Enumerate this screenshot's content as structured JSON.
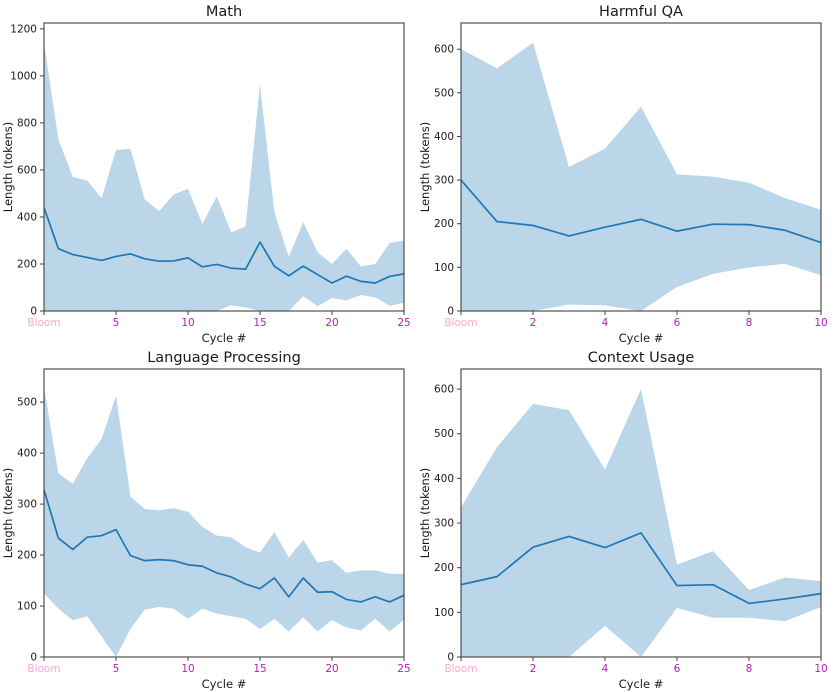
{
  "figure": {
    "background": "#ffffff",
    "x_axis_label": "Cycle #",
    "y_axis_label": "Length (tokens)",
    "bloom_label": "Bloom"
  },
  "colors": {
    "line": "#1f77b4",
    "band": "#1f77b4",
    "band_opacity": 0.3,
    "xtick_label": "#b51eb5",
    "bloom_tick_label": "#ffa6d2",
    "ytick_label": "#1c1c1c",
    "spine": "#414141"
  },
  "chart_data": [
    {
      "type": "line",
      "title": "Math",
      "xlabel": "Cycle #",
      "ylabel": "Length (tokens)",
      "xlim": [
        0,
        25
      ],
      "ylim": [
        0,
        1225
      ],
      "xticks": [
        0,
        5,
        10,
        15,
        20,
        25
      ],
      "xtick_labels": [
        "Bloom",
        "5",
        "10",
        "15",
        "20",
        "25"
      ],
      "yticks": [
        0,
        200,
        400,
        600,
        800,
        1000,
        1200
      ],
      "x": [
        0,
        1,
        2,
        3,
        4,
        5,
        6,
        7,
        8,
        9,
        10,
        11,
        12,
        13,
        14,
        15,
        16,
        17,
        18,
        19,
        20,
        21,
        22,
        23,
        24,
        25
      ],
      "series": {
        "mean": [
          440,
          265,
          240,
          228,
          215,
          232,
          243,
          222,
          212,
          213,
          226,
          188,
          198,
          182,
          178,
          293,
          190,
          150,
          191,
          155,
          119,
          148,
          126,
          119,
          147,
          158
        ],
        "band_upper": [
          1140,
          730,
          570,
          555,
          480,
          685,
          690,
          475,
          425,
          495,
          520,
          370,
          487,
          335,
          360,
          963,
          420,
          230,
          378,
          250,
          200,
          265,
          190,
          200,
          290,
          300
        ],
        "band_lower": [
          0,
          0,
          0,
          0,
          0,
          0,
          0,
          0,
          0,
          0,
          0,
          0,
          0,
          25,
          15,
          0,
          0,
          0,
          63,
          20,
          55,
          45,
          68,
          58,
          22,
          35
        ]
      },
      "legend": "none",
      "grid": false
    },
    {
      "type": "line",
      "title": "Harmful QA",
      "xlabel": "Cycle #",
      "ylabel": "Length (tokens)",
      "xlim": [
        0,
        10
      ],
      "ylim": [
        0,
        660
      ],
      "xticks": [
        0,
        2,
        4,
        6,
        8,
        10
      ],
      "xtick_labels": [
        "Bloom",
        "2",
        "4",
        "6",
        "8",
        "10"
      ],
      "yticks": [
        0,
        100,
        200,
        300,
        400,
        500,
        600
      ],
      "x": [
        0,
        1,
        2,
        3,
        4,
        5,
        6,
        7,
        8,
        9,
        10
      ],
      "series": {
        "mean": [
          300,
          205,
          196,
          172,
          192,
          210,
          183,
          199,
          198,
          185,
          157
        ],
        "band_upper": [
          600,
          556,
          615,
          330,
          372,
          468,
          313,
          308,
          294,
          259,
          232
        ],
        "band_lower": [
          0,
          0,
          0,
          15,
          13,
          0,
          55,
          85,
          100,
          108,
          82
        ]
      },
      "legend": "none",
      "grid": false
    },
    {
      "type": "line",
      "title": "Language Processing",
      "xlabel": "Cycle #",
      "ylabel": "Length (tokens)",
      "xlim": [
        0,
        25
      ],
      "ylim": [
        0,
        565
      ],
      "xticks": [
        0,
        5,
        10,
        15,
        20,
        25
      ],
      "xtick_labels": [
        "Bloom",
        "5",
        "10",
        "15",
        "20",
        "25"
      ],
      "yticks": [
        0,
        100,
        200,
        300,
        400,
        500
      ],
      "x": [
        0,
        1,
        2,
        3,
        4,
        5,
        6,
        7,
        8,
        9,
        10,
        11,
        12,
        13,
        14,
        15,
        16,
        17,
        18,
        19,
        20,
        21,
        22,
        23,
        24,
        25
      ],
      "series": {
        "mean": [
          328,
          233,
          211,
          235,
          238,
          250,
          199,
          189,
          191,
          189,
          181,
          178,
          165,
          157,
          143,
          134,
          155,
          118,
          155,
          127,
          128,
          113,
          108,
          118,
          108,
          121
        ],
        "band_upper": [
          530,
          360,
          340,
          390,
          428,
          512,
          315,
          290,
          288,
          292,
          285,
          255,
          238,
          235,
          215,
          205,
          245,
          195,
          230,
          185,
          190,
          165,
          170,
          170,
          163,
          163
        ],
        "band_lower": [
          125,
          95,
          72,
          80,
          40,
          0,
          55,
          93,
          98,
          95,
          75,
          95,
          85,
          80,
          75,
          55,
          75,
          50,
          78,
          50,
          72,
          58,
          52,
          75,
          50,
          73
        ]
      },
      "legend": "none",
      "grid": false
    },
    {
      "type": "line",
      "title": "Context Usage",
      "xlabel": "Cycle #",
      "ylabel": "Length (tokens)",
      "xlim": [
        0,
        10
      ],
      "ylim": [
        0,
        645
      ],
      "xticks": [
        0,
        2,
        4,
        6,
        8,
        10
      ],
      "xtick_labels": [
        "Bloom",
        "2",
        "4",
        "6",
        "8",
        "10"
      ],
      "yticks": [
        0,
        100,
        200,
        300,
        400,
        500,
        600
      ],
      "x": [
        0,
        1,
        2,
        3,
        4,
        5,
        6,
        7,
        8,
        9,
        10
      ],
      "series": {
        "mean": [
          162,
          180,
          246,
          270,
          245,
          278,
          160,
          162,
          120,
          130,
          142
        ],
        "band_upper": [
          335,
          470,
          567,
          553,
          420,
          600,
          207,
          237,
          150,
          178,
          170
        ],
        "band_lower": [
          0,
          0,
          0,
          0,
          70,
          0,
          110,
          88,
          88,
          80,
          112
        ]
      },
      "legend": "none",
      "grid": false
    }
  ]
}
